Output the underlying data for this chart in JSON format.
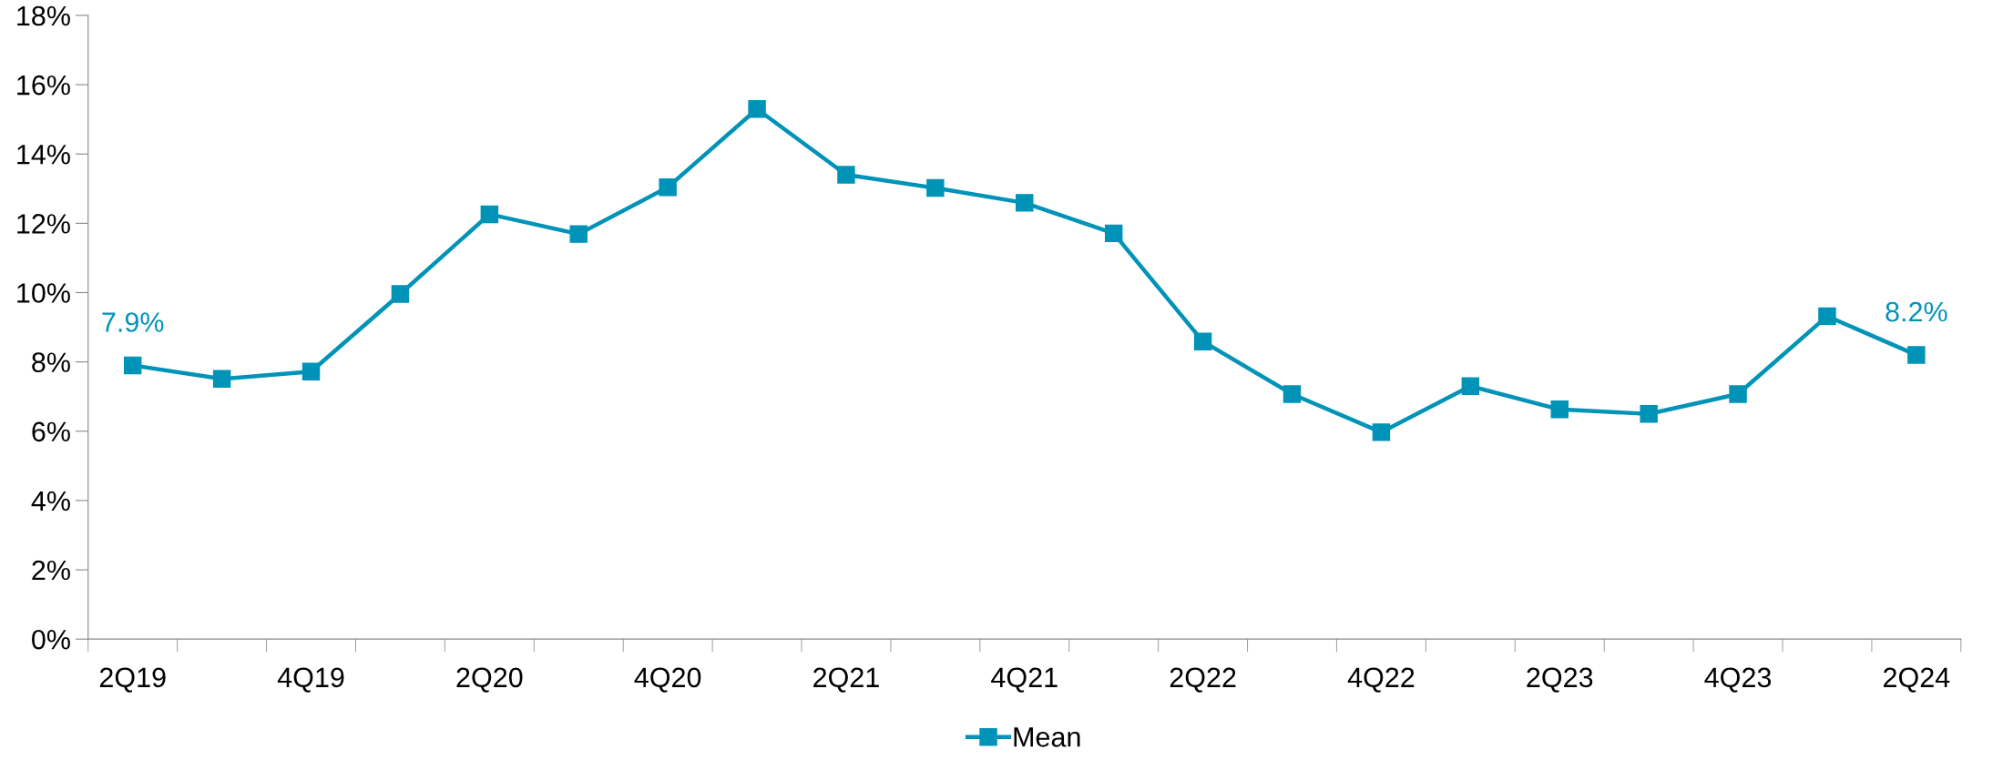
{
  "chart_data": {
    "type": "line",
    "categories": [
      "2Q19",
      null,
      "4Q19",
      null,
      "2Q20",
      null,
      "4Q20",
      null,
      "2Q21",
      null,
      "4Q21",
      null,
      "2Q22",
      null,
      "4Q22",
      null,
      "2Q23",
      null,
      "4Q23",
      null,
      "2Q24"
    ],
    "series": [
      {
        "name": "Mean",
        "color": "#0093b8",
        "values": [
          7.9,
          7.51,
          7.72,
          9.96,
          12.26,
          11.69,
          13.04,
          15.3,
          13.4,
          13.02,
          12.59,
          11.71,
          8.59,
          7.07,
          5.97,
          7.3,
          6.63,
          6.5,
          7.07,
          9.32,
          8.2
        ],
        "value_labels": [
          "7.9%",
          null,
          null,
          null,
          null,
          null,
          null,
          null,
          null,
          null,
          null,
          null,
          null,
          null,
          null,
          null,
          null,
          null,
          null,
          null,
          "8.2%"
        ]
      }
    ],
    "ylim": [
      0,
      18
    ],
    "yticks": [
      {
        "value": 0,
        "label": "0%"
      },
      {
        "value": 2,
        "label": "2%"
      },
      {
        "value": 4,
        "label": "4%"
      },
      {
        "value": 6,
        "label": "6%"
      },
      {
        "value": 8,
        "label": "8%"
      },
      {
        "value": 10,
        "label": "10%"
      },
      {
        "value": 12,
        "label": "12%"
      },
      {
        "value": 14,
        "label": "14%"
      },
      {
        "value": 16,
        "label": "16%"
      },
      {
        "value": 18,
        "label": "18%"
      }
    ],
    "grid": false,
    "legend": "bottom",
    "marker": "square",
    "line_style": "solid"
  }
}
